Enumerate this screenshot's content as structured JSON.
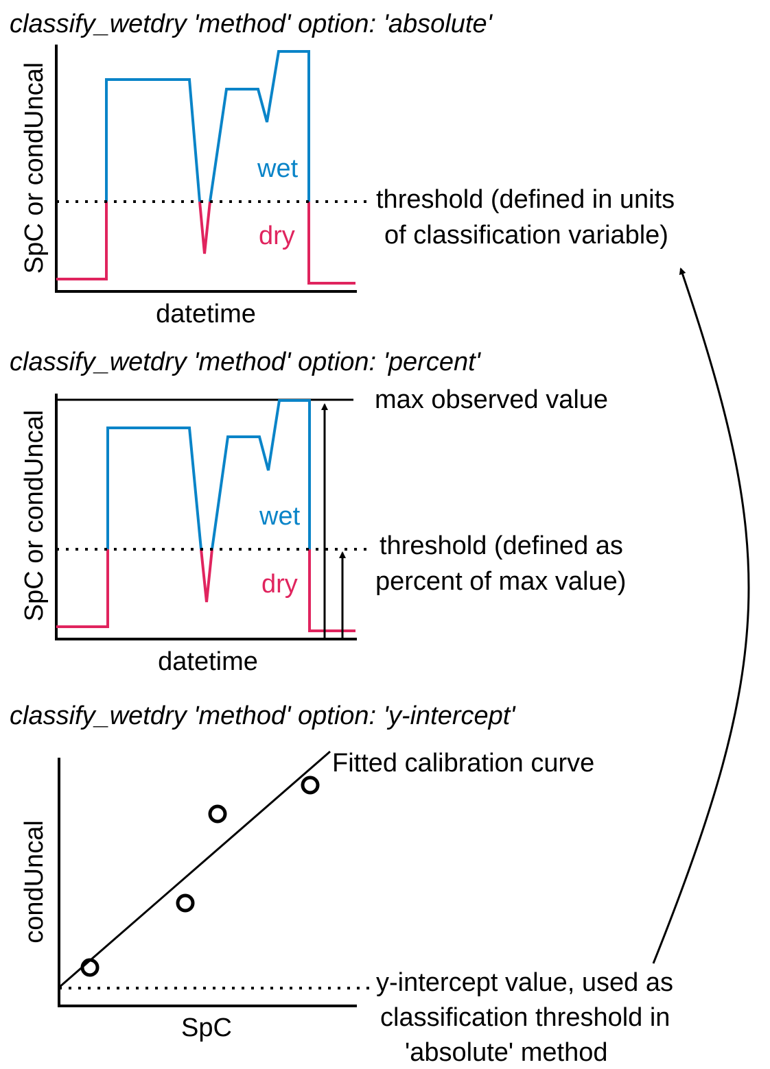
{
  "colors": {
    "wet": "#0a84c8",
    "dry": "#e0245e",
    "ink": "#000000"
  },
  "panels": {
    "absolute": {
      "title": "classify_wetdry 'method' option: 'absolute'",
      "ylabel": "SpC or condUncal",
      "xlabel": "datetime",
      "wet_label": "wet",
      "dry_label": "dry",
      "threshold_line1": "threshold (defined in units",
      "threshold_line2": "of classification variable)"
    },
    "percent": {
      "title": "classify_wetdry 'method' option: 'percent'",
      "ylabel": "SpC or condUncal",
      "xlabel": "datetime",
      "wet_label": "wet",
      "dry_label": "dry",
      "max_label": "max observed value",
      "threshold_line1": "threshold (defined as",
      "threshold_line2": "percent of max value)"
    },
    "yintercept": {
      "title": "classify_wetdry 'method' option: 'y-intercept'",
      "ylabel": "condUncal",
      "xlabel": "SpC",
      "curve_label": "Fitted calibration curve",
      "intercept_line1": "y-intercept value, used as",
      "intercept_line2": "classification threshold in",
      "intercept_line3": "'absolute' method"
    }
  }
}
